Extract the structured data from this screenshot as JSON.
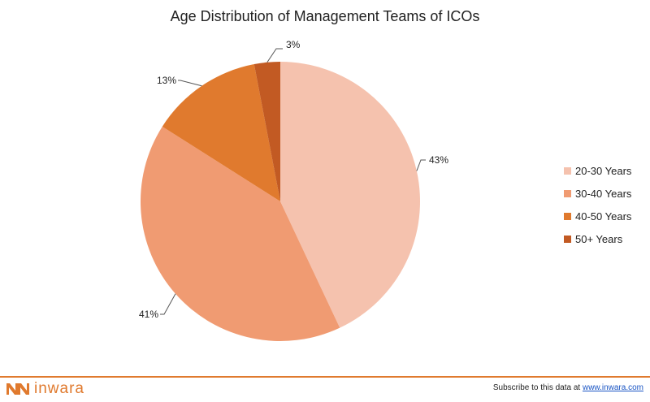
{
  "chart_data": {
    "type": "pie",
    "title": "Age Distribution of Management Teams of ICOs",
    "categories": [
      "20-30 Years",
      "30-40 Years",
      "40-50 Years",
      "50+ Years"
    ],
    "values": [
      43,
      41,
      13,
      3
    ],
    "value_labels": [
      "43%",
      "41%",
      "13%",
      "3%"
    ],
    "colors": [
      "#f5c2ae",
      "#f09b72",
      "#e07a2e",
      "#c25a23"
    ],
    "legend_position": "right",
    "start_angle_deg": 0,
    "direction": "clockwise"
  },
  "footer": {
    "brand_name": "inwara",
    "brand_color": "#e07a2e",
    "subscribe_text": "Subscribe to this data at ",
    "subscribe_link": "www.inwara.com"
  }
}
